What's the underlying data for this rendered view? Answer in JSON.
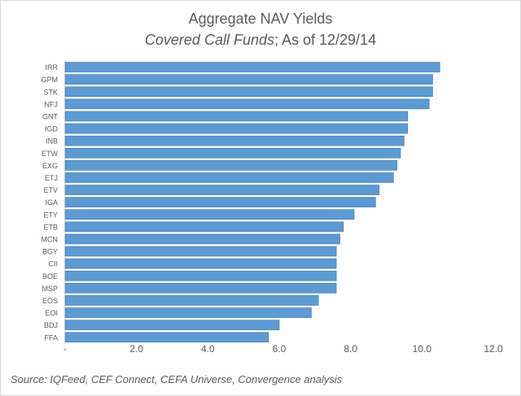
{
  "chart_data": {
    "type": "bar",
    "orientation": "horizontal",
    "title": "Aggregate NAV Yields",
    "subtitle_italic": "Covered Call Funds",
    "subtitle_rest": "; As of 12/29/14",
    "categories": [
      "IRR",
      "GPM",
      "STK",
      "NFJ",
      "GNT",
      "IGD",
      "INB",
      "ETW",
      "EXG",
      "ETJ",
      "ETV",
      "IGA",
      "ETY",
      "ETB",
      "MCN",
      "BGY",
      "CII",
      "BOE",
      "MSP",
      "EOS",
      "EOI",
      "BDJ",
      "FFA"
    ],
    "values": [
      10.5,
      10.3,
      10.3,
      10.2,
      9.6,
      9.6,
      9.5,
      9.4,
      9.3,
      9.2,
      8.8,
      8.7,
      8.1,
      7.8,
      7.7,
      7.6,
      7.6,
      7.6,
      7.6,
      7.1,
      6.9,
      6.0,
      5.7
    ],
    "xlim": [
      0,
      12
    ],
    "xticks": [
      0,
      2,
      4,
      6,
      8,
      10,
      12
    ],
    "xtick_labels": [
      "-",
      "2.0",
      "4.0",
      "6.0",
      "8.0",
      "10.0",
      "12.0"
    ],
    "grid": false,
    "legend": "none",
    "bar_color": "#5b9bd5",
    "bar_edge_color": "#41719c",
    "xlabel": "",
    "ylabel": ""
  },
  "source": "Source:  IQFeed, CEF Connect, CEFA Universe, Convergence analysis"
}
